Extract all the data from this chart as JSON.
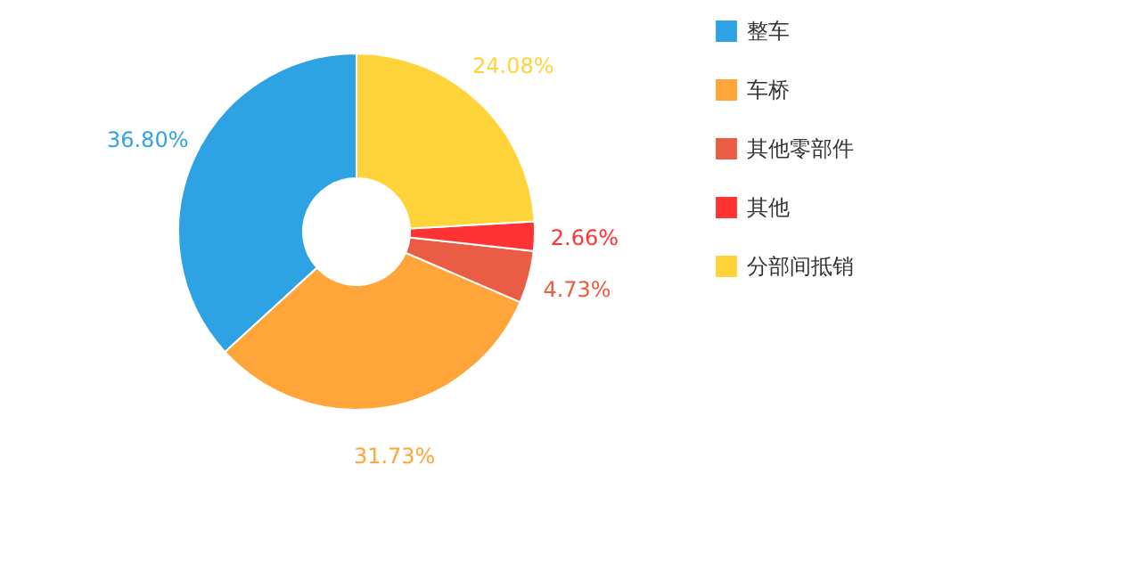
{
  "chart_data": {
    "type": "donut",
    "categories": [
      "整车",
      "车桥",
      "其他零部件",
      "其他",
      "分部间抵销"
    ],
    "values": [
      36.8,
      31.73,
      4.73,
      2.66,
      24.08
    ],
    "colors": [
      "#2ea3e3",
      "#ffa53a",
      "#e85d44",
      "#ff3333",
      "#ffd33a"
    ],
    "value_labels": [
      "36.80%",
      "31.73%",
      "4.73%",
      "2.66%",
      "24.08%"
    ],
    "legend": "top right"
  }
}
